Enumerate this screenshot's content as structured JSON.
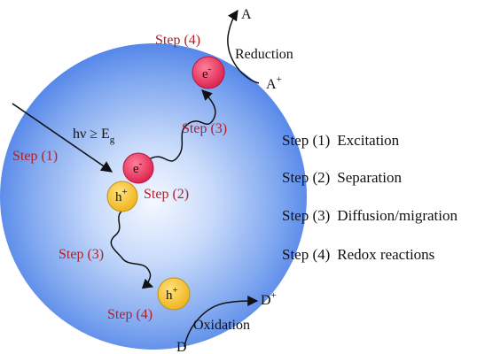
{
  "colors": {
    "sphere_outer": "#4a7ee8",
    "sphere_inner": "#e8f0ff",
    "electron": "#e8325a",
    "hole": "#f2c230",
    "step_text": "#b0202a",
    "arrow": "#111111"
  },
  "photon": {
    "label_h_nu": "hν ≥ E",
    "label_sub": "g"
  },
  "steps_on_diagram": {
    "excitation": "Step (1)",
    "separation": "Step (2)",
    "diffusion_electron": "Step (3)",
    "diffusion_hole": "Step (3)",
    "reduction_step": "Step (4)",
    "oxidation_step": "Step (4)"
  },
  "carriers": {
    "electron_inner": "e",
    "electron_inner_sup": "-",
    "hole_inner": "h",
    "hole_inner_sup": "+",
    "electron_surface": "e",
    "electron_surface_sup": "-",
    "hole_surface": "h",
    "hole_surface_sup": "+"
  },
  "reactions": {
    "reduction_label": "Reduction",
    "A": "A",
    "A_plus": "A",
    "A_plus_sup": "+",
    "oxidation_label": "Oxidation",
    "D": "D",
    "D_plus": "D",
    "D_plus_sup": "+"
  },
  "legend": [
    {
      "step": "Step (1)",
      "desc": "Excitation"
    },
    {
      "step": "Step (2)",
      "desc": "Separation"
    },
    {
      "step": "Step (3)",
      "desc": "Diffusion/migration"
    },
    {
      "step": "Step (4)",
      "desc": "Redox reactions"
    }
  ]
}
